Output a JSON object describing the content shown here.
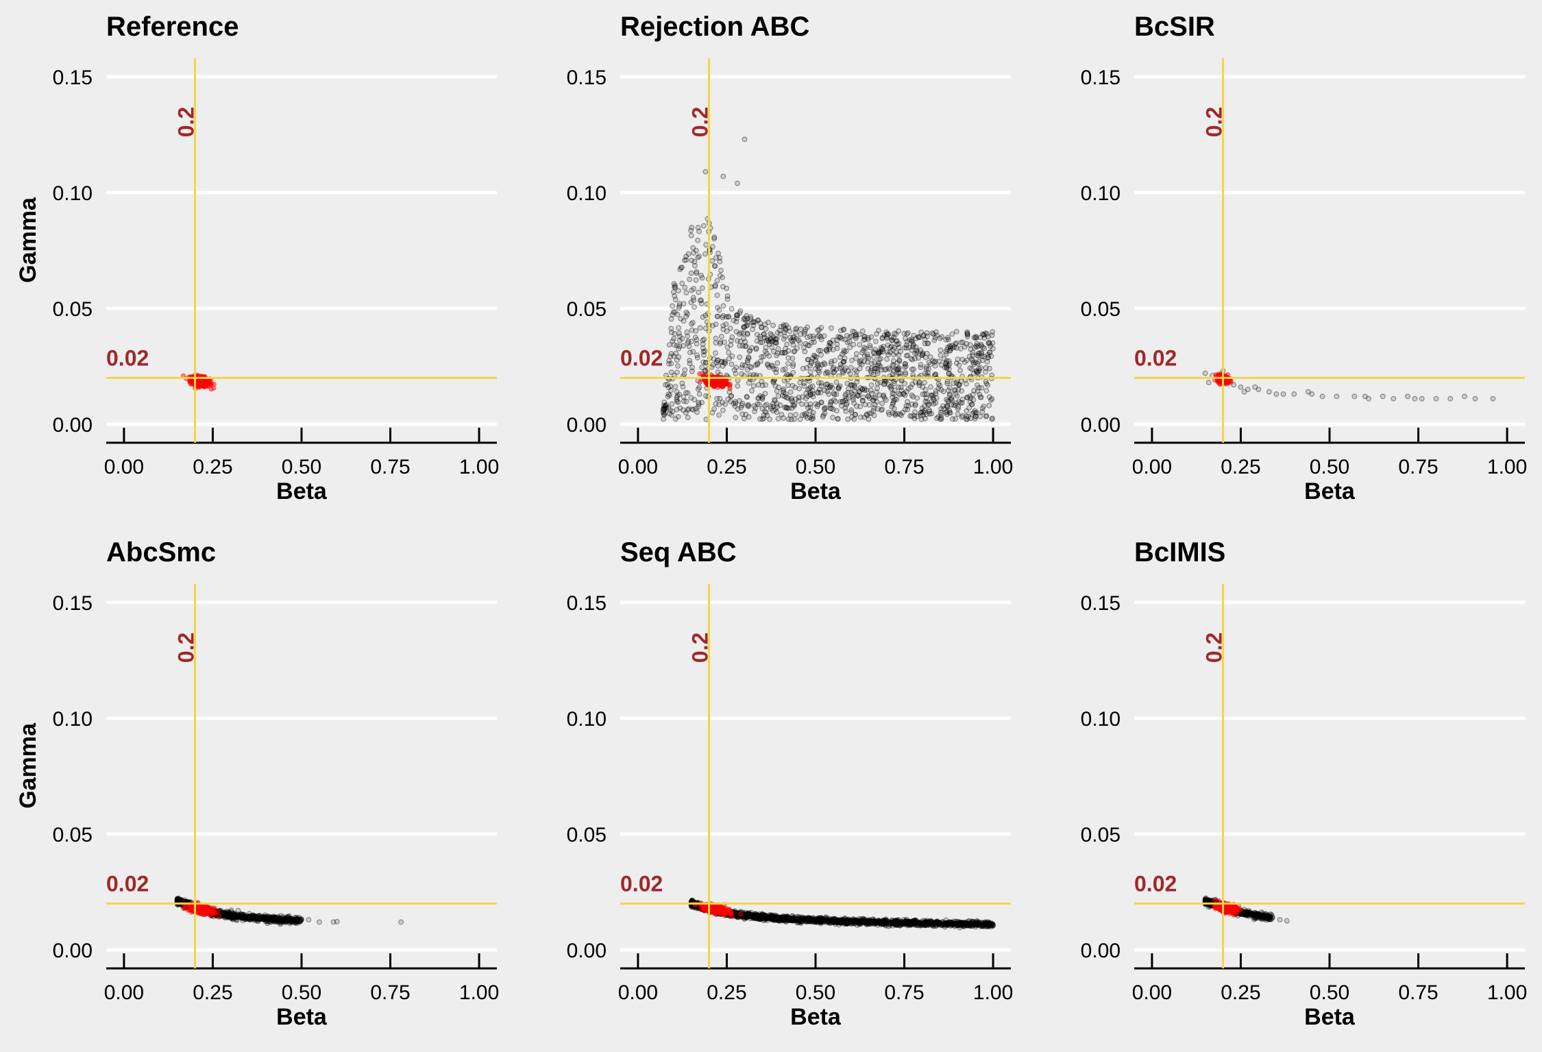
{
  "colors": {
    "background": "#EEEEEE",
    "gridline": "#FFFFFF",
    "reference_line": "#F5D547",
    "reference_label": "#A0282A",
    "posterior_points": "#000000",
    "highlight_points": "#FF0000"
  },
  "chart_data": [
    {
      "type": "scatter",
      "title": "Reference",
      "xlabel": "Beta",
      "ylabel": "Gamma",
      "xlim": [
        -0.05,
        1.05
      ],
      "ylim": [
        -0.008,
        0.158
      ],
      "xticks": [
        0.0,
        0.25,
        0.5,
        0.75,
        1.0
      ],
      "xtick_labels": [
        "0.00",
        "0.25",
        "0.50",
        "0.75",
        "1.00"
      ],
      "yticks": [
        0.0,
        0.05,
        0.1,
        0.15
      ],
      "ytick_labels": [
        "0.00",
        "0.05",
        "0.10",
        "0.15"
      ],
      "reference_lines": {
        "x": 0.2,
        "y": 0.02,
        "x_label": "0.2",
        "y_label": "0.02"
      },
      "series": [
        {
          "color": "red",
          "cloud": {
            "center": [
              0.215,
              0.0185
            ],
            "spread": [
              0.025,
              0.0018
            ],
            "count": 360,
            "tilt": -0.025
          }
        }
      ]
    },
    {
      "type": "scatter",
      "title": "Rejection ABC",
      "xlabel": "Beta",
      "ylabel": "",
      "xlim": [
        -0.05,
        1.05
      ],
      "ylim": [
        -0.008,
        0.158
      ],
      "xticks": [
        0.0,
        0.25,
        0.5,
        0.75,
        1.0
      ],
      "xtick_labels": [
        "0.00",
        "0.25",
        "0.50",
        "0.75",
        "1.00"
      ],
      "yticks": [
        0.0,
        0.05,
        0.1,
        0.15
      ],
      "ytick_labels": [
        "0.00",
        "0.05",
        "0.10",
        "0.15"
      ],
      "reference_lines": {
        "x": 0.2,
        "y": 0.02,
        "x_label": "0.2",
        "y_label": "0.02"
      },
      "series": [
        {
          "color": "black",
          "region": {
            "x_range": [
              0.07,
              1.0
            ],
            "y_min": 0.002,
            "boundary": [
              [
                0.07,
                0.006
              ],
              [
                0.1,
                0.06
              ],
              [
                0.15,
                0.085
              ],
              [
                0.2,
                0.09
              ],
              [
                0.25,
                0.06
              ],
              [
                0.3,
                0.047
              ],
              [
                0.4,
                0.043
              ],
              [
                0.6,
                0.041
              ],
              [
                0.8,
                0.04
              ],
              [
                1.0,
                0.04
              ]
            ],
            "count": 1500
          }
        },
        {
          "color": "black",
          "points": [
            [
              0.3,
              0.123
            ],
            [
              0.24,
              0.107
            ],
            [
              0.28,
              0.104
            ],
            [
              0.19,
              0.109
            ]
          ]
        },
        {
          "color": "red",
          "cloud": {
            "center": [
              0.22,
              0.0185
            ],
            "spread": [
              0.025,
              0.0018
            ],
            "count": 320,
            "tilt": -0.025
          }
        }
      ]
    },
    {
      "type": "scatter",
      "title": "BcSIR",
      "xlabel": "Beta",
      "ylabel": "",
      "xlim": [
        -0.05,
        1.05
      ],
      "ylim": [
        -0.008,
        0.158
      ],
      "xticks": [
        0.0,
        0.25,
        0.5,
        0.75,
        1.0
      ],
      "xtick_labels": [
        "0.00",
        "0.25",
        "0.50",
        "0.75",
        "1.00"
      ],
      "yticks": [
        0.0,
        0.05,
        0.1,
        0.15
      ],
      "ytick_labels": [
        "0.00",
        "0.05",
        "0.10",
        "0.15"
      ],
      "reference_lines": {
        "x": 0.2,
        "y": 0.02,
        "x_label": "0.2",
        "y_label": "0.02"
      },
      "series": [
        {
          "color": "black",
          "points": [
            [
              0.15,
              0.022
            ],
            [
              0.17,
              0.021
            ],
            [
              0.19,
              0.02
            ],
            [
              0.21,
              0.018
            ],
            [
              0.23,
              0.017
            ],
            [
              0.25,
              0.016
            ],
            [
              0.27,
              0.015
            ],
            [
              0.3,
              0.015
            ],
            [
              0.33,
              0.014
            ],
            [
              0.37,
              0.013
            ],
            [
              0.4,
              0.013
            ],
            [
              0.45,
              0.013
            ],
            [
              0.48,
              0.012
            ],
            [
              0.52,
              0.012
            ],
            [
              0.57,
              0.012
            ],
            [
              0.61,
              0.011
            ],
            [
              0.65,
              0.012
            ],
            [
              0.68,
              0.011
            ],
            [
              0.72,
              0.012
            ],
            [
              0.76,
              0.011
            ],
            [
              0.8,
              0.011
            ],
            [
              0.84,
              0.011
            ],
            [
              0.88,
              0.012
            ],
            [
              0.91,
              0.011
            ],
            [
              0.96,
              0.011
            ],
            [
              0.26,
              0.014
            ],
            [
              0.29,
              0.016
            ],
            [
              0.35,
              0.013
            ],
            [
              0.44,
              0.014
            ],
            [
              0.6,
              0.012
            ],
            [
              0.74,
              0.011
            ],
            [
              0.2,
              0.023
            ],
            [
              0.16,
              0.018
            ]
          ]
        },
        {
          "color": "red",
          "cloud": {
            "center": [
              0.2,
              0.0195
            ],
            "spread": [
              0.015,
              0.0015
            ],
            "count": 220,
            "tilt": -0.03
          }
        }
      ]
    },
    {
      "type": "scatter",
      "title": "AbcSmc",
      "xlabel": "Beta",
      "ylabel": "Gamma",
      "xlim": [
        -0.05,
        1.05
      ],
      "ylim": [
        -0.008,
        0.158
      ],
      "xticks": [
        0.0,
        0.25,
        0.5,
        0.75,
        1.0
      ],
      "xtick_labels": [
        "0.00",
        "0.25",
        "0.50",
        "0.75",
        "1.00"
      ],
      "yticks": [
        0.0,
        0.05,
        0.1,
        0.15
      ],
      "ytick_labels": [
        "0.00",
        "0.05",
        "0.10",
        "0.15"
      ],
      "reference_lines": {
        "x": 0.2,
        "y": 0.02,
        "x_label": "0.2",
        "y_label": "0.02"
      },
      "series": [
        {
          "color": "black",
          "band": {
            "curve": [
              [
                0.15,
                0.021
              ],
              [
                0.2,
                0.0185
              ],
              [
                0.25,
                0.016
              ],
              [
                0.3,
                0.0148
              ],
              [
                0.35,
                0.014
              ],
              [
                0.4,
                0.0135
              ],
              [
                0.45,
                0.013
              ],
              [
                0.5,
                0.0128
              ]
            ],
            "spread": 0.0013,
            "count": 1100
          }
        },
        {
          "color": "black",
          "points": [
            [
              0.59,
              0.012
            ],
            [
              0.6,
              0.0122
            ],
            [
              0.78,
              0.012
            ],
            [
              0.52,
              0.013
            ],
            [
              0.55,
              0.012
            ]
          ]
        },
        {
          "color": "red",
          "cloud": {
            "center": [
              0.215,
              0.0175
            ],
            "spread": [
              0.03,
              0.0015
            ],
            "count": 300,
            "tilt": -0.03
          }
        }
      ]
    },
    {
      "type": "scatter",
      "title": "Seq ABC",
      "xlabel": "Beta",
      "ylabel": "",
      "xlim": [
        -0.05,
        1.05
      ],
      "ylim": [
        -0.008,
        0.158
      ],
      "xticks": [
        0.0,
        0.25,
        0.5,
        0.75,
        1.0
      ],
      "xtick_labels": [
        "0.00",
        "0.25",
        "0.50",
        "0.75",
        "1.00"
      ],
      "yticks": [
        0.0,
        0.05,
        0.1,
        0.15
      ],
      "ytick_labels": [
        "0.00",
        "0.05",
        "0.10",
        "0.15"
      ],
      "reference_lines": {
        "x": 0.2,
        "y": 0.02,
        "x_label": "0.2",
        "y_label": "0.02"
      },
      "series": [
        {
          "color": "black",
          "band": {
            "curve": [
              [
                0.15,
                0.02
              ],
              [
                0.2,
                0.0175
              ],
              [
                0.25,
                0.016
              ],
              [
                0.3,
                0.0148
              ],
              [
                0.4,
                0.0135
              ],
              [
                0.5,
                0.0128
              ],
              [
                0.6,
                0.0122
              ],
              [
                0.7,
                0.0118
              ],
              [
                0.8,
                0.0115
              ],
              [
                0.9,
                0.0112
              ],
              [
                1.0,
                0.011
              ]
            ],
            "spread": 0.0011,
            "count": 2200
          }
        },
        {
          "color": "red",
          "cloud": {
            "center": [
              0.22,
              0.0175
            ],
            "spread": [
              0.035,
              0.0015
            ],
            "count": 320,
            "tilt": -0.03
          }
        }
      ]
    },
    {
      "type": "scatter",
      "title": "BcIMIS",
      "xlabel": "Beta",
      "ylabel": "",
      "xlim": [
        -0.05,
        1.05
      ],
      "ylim": [
        -0.008,
        0.158
      ],
      "xticks": [
        0.0,
        0.25,
        0.5,
        0.75,
        1.0
      ],
      "xtick_labels": [
        "0.00",
        "0.25",
        "0.50",
        "0.75",
        "1.00"
      ],
      "yticks": [
        0.0,
        0.05,
        0.1,
        0.15
      ],
      "ytick_labels": [
        "0.00",
        "0.05",
        "0.10",
        "0.15"
      ],
      "reference_lines": {
        "x": 0.2,
        "y": 0.02,
        "x_label": "0.2",
        "y_label": "0.02"
      },
      "series": [
        {
          "color": "black",
          "band": {
            "curve": [
              [
                0.15,
                0.021
              ],
              [
                0.2,
                0.0185
              ],
              [
                0.25,
                0.016
              ],
              [
                0.3,
                0.0148
              ],
              [
                0.34,
                0.014
              ]
            ],
            "spread": 0.0013,
            "count": 600
          }
        },
        {
          "color": "black",
          "points": [
            [
              0.38,
              0.0125
            ],
            [
              0.36,
              0.013
            ]
          ]
        },
        {
          "color": "red",
          "cloud": {
            "center": [
              0.21,
              0.018
            ],
            "spread": [
              0.025,
              0.0015
            ],
            "count": 260,
            "tilt": -0.03
          }
        }
      ]
    }
  ]
}
